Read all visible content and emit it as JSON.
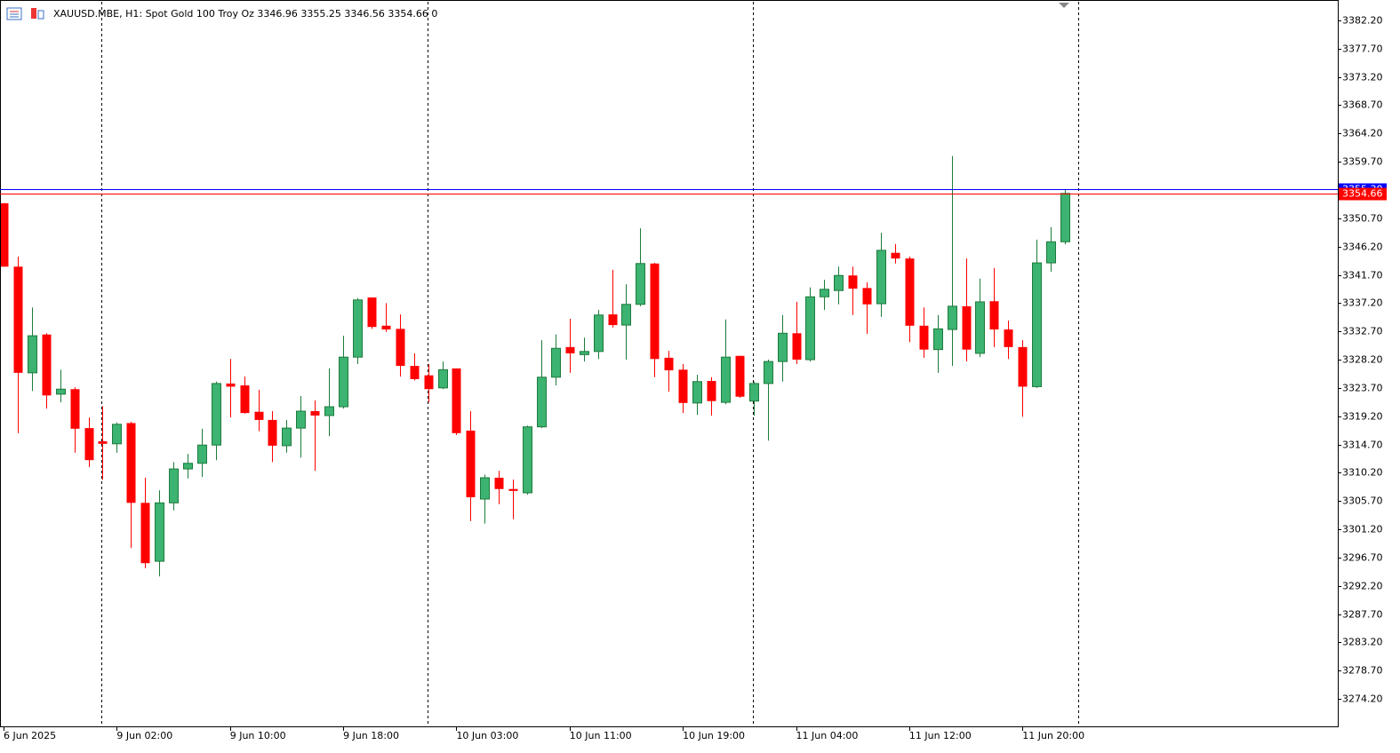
{
  "chart_data": {
    "type": "candlestick",
    "title": "XAUUSD.MBE, H1:  Spot Gold 100 Troy Oz  3346.96 3355.25 3346.56 3354.66  0",
    "categories": [
      "6 Jun 2025",
      null,
      null,
      null,
      null,
      null,
      null,
      null,
      "9 Jun 02:00",
      null,
      null,
      null,
      null,
      null,
      null,
      null,
      "9 Jun 10:00",
      null,
      null,
      null,
      null,
      null,
      null,
      null,
      "9 Jun 18:00",
      null,
      null,
      null,
      null,
      null,
      null,
      null,
      "10 Jun 03:00",
      null,
      null,
      null,
      null,
      null,
      null,
      null,
      "10 Jun 11:00",
      null,
      null,
      null,
      null,
      null,
      null,
      null,
      "10 Jun 19:00",
      null,
      null,
      null,
      null,
      null,
      null,
      null,
      "11 Jun 04:00",
      null,
      null,
      null,
      null,
      null,
      null,
      null,
      "11 Jun 12:00",
      null,
      null,
      null,
      null,
      null,
      null,
      null,
      "11 Jun 20:00",
      null,
      null,
      null
    ],
    "open": [
      3353.1,
      3343.0,
      3326.1,
      3332.2,
      3322.7,
      3323.5,
      3317.3,
      3315.2,
      3314.8,
      3318.1,
      3305.4,
      3296.1,
      3305.4,
      3310.8,
      3311.7,
      3314.6,
      3324.4,
      3324.1,
      3319.9,
      3318.6,
      3314.5,
      3317.3,
      3320.0,
      3319.3,
      3320.7,
      3328.6,
      3338.1,
      3333.6,
      3333.1,
      3327.2,
      3325.7,
      3323.7,
      3326.8,
      3316.9,
      3306.0,
      3309.4,
      3307.6,
      3307.0,
      3317.5,
      3325.4,
      3330.2,
      3329.0,
      3329.5,
      3335.4,
      3333.7,
      3337.0,
      3343.5,
      3328.5,
      3326.6,
      3321.3,
      3324.8,
      3321.4,
      3328.8,
      3321.6,
      3324.4,
      3327.9,
      3332.4,
      3328.2,
      3338.2,
      3339.2,
      3341.6,
      3339.6,
      3337.1,
      3345.2,
      3344.3,
      3333.6,
      3329.8,
      3333.0,
      3336.7,
      3329.2,
      3337.5,
      3333.0,
      3330.2,
      3323.9,
      3343.6,
      3346.96
    ],
    "high": [
      3353.1,
      3344.6,
      3336.5,
      3332.4,
      3326.6,
      3323.8,
      3319.0,
      3320.8,
      3318.2,
      3318.3,
      3309.4,
      3307.4,
      3311.9,
      3313.2,
      3317.2,
      3324.7,
      3328.3,
      3325.5,
      3323.4,
      3320.0,
      3318.6,
      3322.4,
      3321.7,
      3326.8,
      3332.0,
      3338.0,
      3338.1,
      3337.2,
      3335.4,
      3329.2,
      3327.5,
      3327.9,
      3326.8,
      3320.0,
      3309.9,
      3310.5,
      3309.1,
      3317.7,
      3331.3,
      3332.2,
      3334.7,
      3331.7,
      3336.1,
      3342.5,
      3340.2,
      3349.1,
      3343.6,
      3329.6,
      3327.5,
      3325.8,
      3325.4,
      3334.6,
      3328.8,
      3324.7,
      3328.2,
      3335.3,
      3337.4,
      3339.7,
      3340.9,
      3343.0,
      3343.0,
      3340.5,
      3348.4,
      3346.6,
      3344.6,
      3336.5,
      3335.3,
      3360.6,
      3344.3,
      3341.1,
      3342.8,
      3334.4,
      3331.3,
      3347.3,
      3349.3,
      3355.25
    ],
    "low": [
      3343.0,
      3316.5,
      3323.2,
      3320.4,
      3321.4,
      3313.4,
      3311.1,
      3309.1,
      3313.4,
      3298.2,
      3295.0,
      3293.7,
      3304.2,
      3309.3,
      3309.5,
      3312.2,
      3319.0,
      3319.6,
      3316.8,
      3311.9,
      3313.4,
      3312.6,
      3310.5,
      3316.0,
      3320.4,
      3327.5,
      3333.1,
      3332.6,
      3325.5,
      3324.9,
      3321.4,
      3323.5,
      3316.2,
      3302.5,
      3302.1,
      3305.2,
      3302.8,
      3306.7,
      3317.3,
      3324.1,
      3326.1,
      3327.9,
      3328.3,
      3333.3,
      3328.2,
      3336.7,
      3325.4,
      3323.1,
      3319.7,
      3319.4,
      3319.3,
      3321.1,
      3322.1,
      3319.3,
      3315.3,
      3324.7,
      3327.5,
      3327.9,
      3336.1,
      3337.0,
      3335.3,
      3332.3,
      3335.0,
      3343.5,
      3331.0,
      3328.5,
      3326.1,
      3327.2,
      3327.9,
      3328.6,
      3330.2,
      3328.3,
      3319.1,
      3323.7,
      3342.2,
      3346.56
    ],
    "close": [
      3343.0,
      3326.1,
      3332.0,
      3322.5,
      3323.5,
      3317.2,
      3312.2,
      3314.8,
      3317.9,
      3305.4,
      3295.8,
      3305.4,
      3310.8,
      3311.7,
      3314.6,
      3324.4,
      3323.9,
      3319.7,
      3318.6,
      3314.5,
      3317.3,
      3320.0,
      3319.3,
      3320.7,
      3328.6,
      3337.7,
      3333.4,
      3333.0,
      3327.2,
      3325.1,
      3323.5,
      3326.6,
      3316.5,
      3306.3,
      3309.4,
      3307.6,
      3307.3,
      3317.5,
      3325.4,
      3330.0,
      3329.2,
      3329.5,
      3335.3,
      3333.7,
      3337.0,
      3343.5,
      3328.3,
      3326.5,
      3321.3,
      3324.7,
      3321.6,
      3328.6,
      3322.3,
      3324.4,
      3327.9,
      3332.4,
      3328.2,
      3338.2,
      3339.4,
      3341.6,
      3339.5,
      3337.0,
      3345.6,
      3344.3,
      3333.6,
      3329.8,
      3333.1,
      3336.7,
      3329.8,
      3337.4,
      3333.0,
      3330.2,
      3323.9,
      3343.6,
      3346.96,
      3354.66
    ],
    "up_color": "#3cb371",
    "up_edge_color": "#1e7a3c",
    "down_color": "#ff0000",
    "ylim": [
      3269.82,
      3385.45
    ],
    "yticks": [
      {
        "value": 3274.2,
        "label": "3274.20"
      },
      {
        "value": 3278.7,
        "label": "3278.70"
      },
      {
        "value": 3283.2,
        "label": "3283.20"
      },
      {
        "value": 3287.7,
        "label": "3287.70"
      },
      {
        "value": 3292.2,
        "label": "3292.20"
      },
      {
        "value": 3296.7,
        "label": "3296.70"
      },
      {
        "value": 3301.2,
        "label": "3301.20"
      },
      {
        "value": 3305.7,
        "label": "3305.70"
      },
      {
        "value": 3310.2,
        "label": "3310.20"
      },
      {
        "value": 3314.7,
        "label": "3314.70"
      },
      {
        "value": 3319.2,
        "label": "3319.20"
      },
      {
        "value": 3323.7,
        "label": "3323.70"
      },
      {
        "value": 3328.2,
        "label": "3328.20"
      },
      {
        "value": 3332.7,
        "label": "3332.70"
      },
      {
        "value": 3337.2,
        "label": "3337.20"
      },
      {
        "value": 3341.7,
        "label": "3341.70"
      },
      {
        "value": 3346.2,
        "label": "3346.20"
      },
      {
        "value": 3350.7,
        "label": "3350.70"
      },
      {
        "value": 3359.7,
        "label": "3359.70"
      },
      {
        "value": 3364.2,
        "label": "3364.20"
      },
      {
        "value": 3368.7,
        "label": "3368.70"
      },
      {
        "value": 3373.2,
        "label": "3373.20"
      },
      {
        "value": 3377.7,
        "label": "3377.70"
      },
      {
        "value": 3382.2,
        "label": "3382.20"
      }
    ],
    "ask_line": {
      "value": 3355.3,
      "label": "3355.30",
      "color": "#0000ff"
    },
    "bid_line": {
      "value": 3354.66,
      "label": "3354.66",
      "color": "#ff0000"
    }
  }
}
